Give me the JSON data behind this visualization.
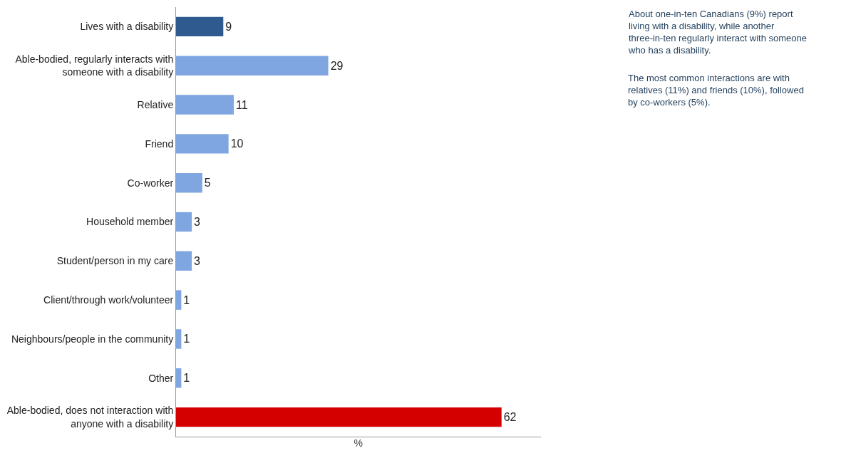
{
  "chart_data": {
    "type": "bar",
    "orientation": "horizontal",
    "xlabel": "%",
    "categories": [
      "Lives with a disability",
      "Able-bodied, regularly interacts with someone with a disability",
      "Relative",
      "Friend",
      "Co-worker",
      "Household member",
      "Student/person in my care",
      "Client/through work/volunteer",
      "Neighbours/people in the community",
      "Other",
      "Able-bodied, does not interaction with anyone with a disability"
    ],
    "values": [
      9,
      29,
      11,
      10,
      5,
      3,
      3,
      1,
      1,
      1,
      62
    ],
    "colors": [
      "#2f5a8f",
      "#7fa6e0",
      "#7fa6e0",
      "#7fa6e0",
      "#7fa6e0",
      "#7fa6e0",
      "#7fa6e0",
      "#7fa6e0",
      "#7fa6e0",
      "#7fa6e0",
      "#d40000"
    ],
    "data_labels": true,
    "tick_labels": "y",
    "grid": false,
    "annotations": [
      "About one-in-ten Canadians (9%) report living with a disability, while another three-in-ten regularly interact with someone who has a disability.",
      "The most common interactions are with relatives (11%) and friends (10%), followed by co-workers (5%)."
    ]
  }
}
